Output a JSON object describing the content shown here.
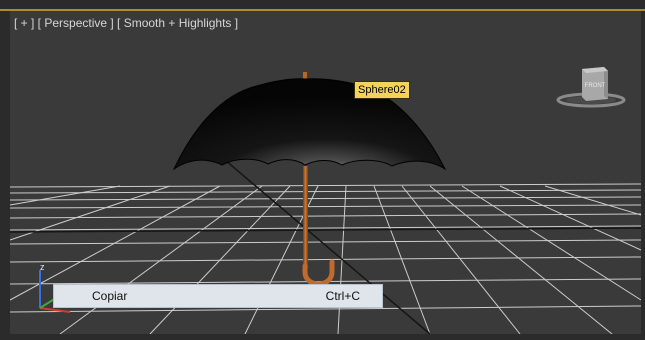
{
  "viewport": {
    "label": "[ + ] [ Perspective ] [ Smooth + Highlights ]"
  },
  "object_tooltip": "Sphere02",
  "viewcube": {
    "face_label": "FRONT"
  },
  "context_menu": {
    "item": {
      "label": "Copiar",
      "shortcut": "Ctrl+C"
    }
  },
  "axis_gizmo": {
    "up_axis": "z"
  },
  "colors": {
    "background": "#3a3a3a",
    "grid": "#dcdcdc",
    "frame_accent": "#b3873a",
    "tooltip": "#f3d35c",
    "menu_background": "#dfe5ea",
    "umbrella_handle": "#b8642a"
  }
}
